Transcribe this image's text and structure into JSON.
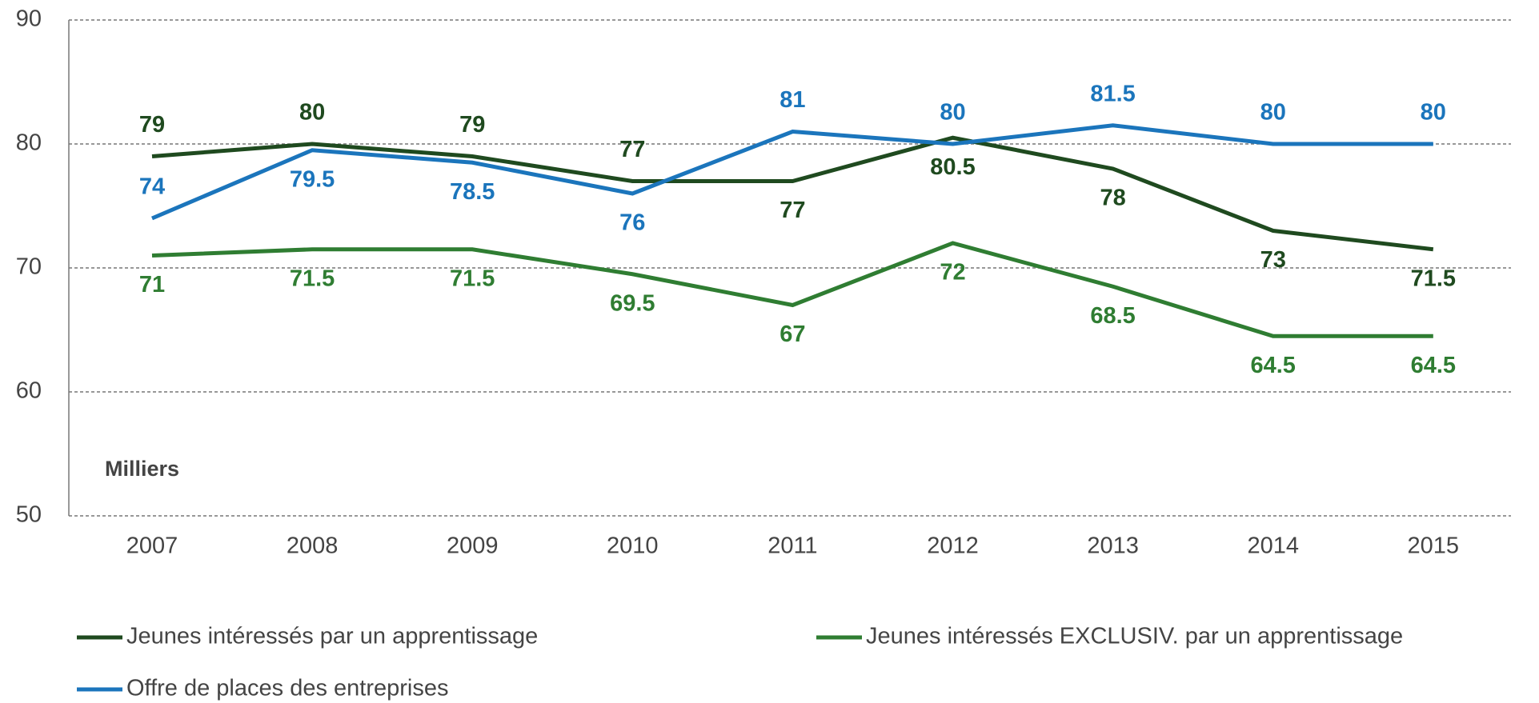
{
  "chart_data": {
    "type": "line",
    "categories": [
      "2007",
      "2008",
      "2009",
      "2010",
      "2011",
      "2012",
      "2013",
      "2014",
      "2015"
    ],
    "series": [
      {
        "name": "Jeunes intéressés par un apprentissage",
        "color": "#1f4a1f",
        "values": [
          79,
          80,
          79,
          77,
          77,
          80.5,
          78,
          73,
          71.5
        ]
      },
      {
        "name": "Jeunes intéressés EXCLUSIV. par un apprentissage",
        "color": "#2f7d32",
        "values": [
          71,
          71.5,
          71.5,
          69.5,
          67,
          72,
          68.5,
          64.5,
          64.5
        ]
      },
      {
        "name": "Offre de places des entreprises",
        "color": "#1b75bc",
        "values": [
          74,
          79.5,
          78.5,
          76,
          81,
          80,
          81.5,
          80,
          80
        ]
      }
    ],
    "ylim": [
      50,
      90
    ],
    "yticks": [
      50,
      60,
      70,
      80,
      90
    ],
    "grid": true,
    "annotation": "Milliers",
    "legend": "bottom"
  }
}
